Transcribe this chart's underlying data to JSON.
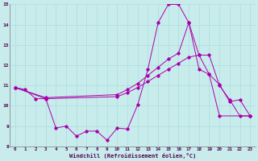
{
  "bg_color": "#c8ecec",
  "line_color": "#aa00aa",
  "grid_color": "#aadddd",
  "xlabel": "Windchill (Refroidissement éolien,°C)",
  "xlim": [
    -0.5,
    23.5
  ],
  "ylim": [
    8,
    15
  ],
  "yticks": [
    8,
    9,
    10,
    11,
    12,
    13,
    14,
    15
  ],
  "xticks": [
    0,
    1,
    2,
    3,
    4,
    5,
    6,
    7,
    8,
    9,
    10,
    11,
    12,
    13,
    14,
    15,
    16,
    17,
    18,
    19,
    20,
    21,
    22,
    23
  ],
  "line1_x": [
    0,
    1,
    2,
    3,
    4,
    5,
    6,
    7,
    8,
    9,
    10,
    11,
    12,
    13,
    14,
    15,
    16,
    17,
    18,
    19,
    20,
    21,
    22,
    23
  ],
  "line1_y": [
    10.9,
    10.8,
    10.35,
    10.35,
    8.9,
    9.0,
    8.5,
    8.75,
    8.75,
    8.3,
    8.9,
    8.85,
    10.05,
    11.8,
    14.1,
    15.0,
    15.0,
    14.1,
    11.8,
    11.55,
    11.05,
    10.2,
    10.3,
    9.5
  ],
  "line2_x": [
    0,
    3,
    10,
    11,
    12,
    13,
    14,
    15,
    16,
    17,
    18,
    19,
    20,
    21,
    22,
    23
  ],
  "line2_y": [
    10.9,
    10.4,
    10.55,
    10.8,
    11.1,
    11.5,
    11.9,
    12.3,
    12.6,
    14.1,
    12.5,
    12.5,
    11.0,
    10.3,
    9.5,
    9.5
  ],
  "line3_x": [
    0,
    3,
    10,
    11,
    12,
    13,
    14,
    15,
    16,
    17,
    18,
    19,
    20,
    23
  ],
  "line3_y": [
    10.9,
    10.35,
    10.45,
    10.65,
    10.9,
    11.2,
    11.5,
    11.8,
    12.1,
    12.4,
    12.5,
    11.55,
    9.5,
    9.5
  ]
}
